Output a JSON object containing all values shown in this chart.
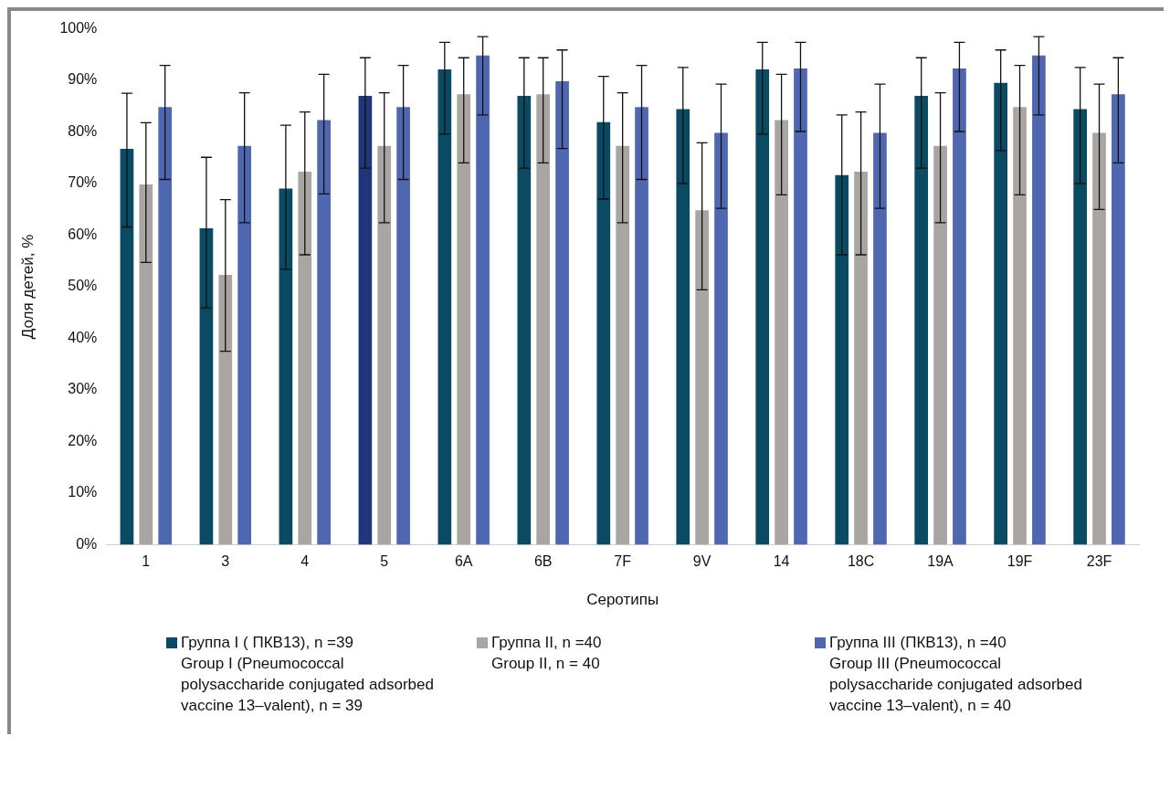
{
  "chart_data": {
    "type": "bar",
    "xlabel": "Серотипы",
    "ylabel": "Доля детей, %",
    "categories": [
      "1",
      "3",
      "4",
      "5",
      "6A",
      "6B",
      "7F",
      "9V",
      "14",
      "18C",
      "19A",
      "19F",
      "23F"
    ],
    "ylim": [
      0,
      100
    ],
    "yticks": [
      {
        "value": 0,
        "label": "0%"
      },
      {
        "value": 10,
        "label": "10%"
      },
      {
        "value": 20,
        "label": "20%"
      },
      {
        "value": 30,
        "label": "30%"
      },
      {
        "value": 40,
        "label": "40%"
      },
      {
        "value": 50,
        "label": "50%"
      },
      {
        "value": 60,
        "label": "60%"
      },
      {
        "value": 70,
        "label": "70%"
      },
      {
        "value": 80,
        "label": "80%"
      },
      {
        "value": 90,
        "label": "90%"
      },
      {
        "value": 100,
        "label": "100%"
      }
    ],
    "grid": false,
    "legend": "bottom",
    "series": [
      {
        "name": "Группа I ( ПКВ13), n =39\nGroup I (Pneumococcal polysaccharide conjugated adsorbed vaccine 13–valent), n = 39",
        "color": "#0a4a62",
        "colors": [
          "#0a4a62",
          "#0a4a62",
          "#0a4a62",
          "#20367a",
          "#0a4a62",
          "#0a4a62",
          "#0a4a62",
          "#0a4a62",
          "#0a4a62",
          "#0a4a62",
          "#0a4a62",
          "#0a4a62",
          "#0a4a62"
        ],
        "values": [
          76.9,
          61.5,
          69.2,
          87.2,
          92.3,
          87.2,
          82.1,
          84.6,
          92.3,
          71.8,
          87.2,
          89.7,
          84.6
        ],
        "errors": [
          [
            61.6,
            87.5
          ],
          [
            45.9,
            75.1
          ],
          [
            53.4,
            81.3
          ],
          [
            73,
            94.4
          ],
          [
            79.6,
            97.4
          ],
          [
            73,
            94.4
          ],
          [
            67,
            90.8
          ],
          [
            70,
            92.5
          ],
          [
            79.6,
            97.4
          ],
          [
            56.2,
            83.3
          ],
          [
            73,
            94.4
          ],
          [
            76.4,
            95.9
          ],
          [
            70,
            92.5
          ]
        ]
      },
      {
        "name": "Группа II, n =40\nGroup II, n = 40",
        "color": "#a8a5a2",
        "values": [
          70,
          52.5,
          72.5,
          77.5,
          87.5,
          87.5,
          77.5,
          65,
          82.5,
          72.5,
          77.5,
          85,
          80
        ],
        "errors": [
          [
            54.7,
            81.8
          ],
          [
            37.5,
            66.9
          ],
          [
            56.2,
            83.9
          ],
          [
            62.4,
            87.6
          ],
          [
            74,
            94.4
          ],
          [
            74,
            94.4
          ],
          [
            62.4,
            87.6
          ],
          [
            49.4,
            77.9
          ],
          [
            67.8,
            91.2
          ],
          [
            56.2,
            83.9
          ],
          [
            62.4,
            87.6
          ],
          [
            67.8,
            92.9
          ],
          [
            65,
            89.3
          ]
        ]
      },
      {
        "name": "Группа III (ПКВ13), n =40\nGroup III (Pneumococcal polysaccharide conjugated adsorbed vaccine 13–valent), n = 40",
        "color": "#4f67b0",
        "values": [
          85,
          77.5,
          82.5,
          85,
          95,
          90,
          85,
          80,
          92.5,
          80,
          92.5,
          95,
          87.5
        ],
        "errors": [
          [
            70.8,
            92.9
          ],
          [
            62.4,
            87.6
          ],
          [
            68,
            91.2
          ],
          [
            70.8,
            92.9
          ],
          [
            83.3,
            98.5
          ],
          [
            76.8,
            95.9
          ],
          [
            70.8,
            92.9
          ],
          [
            65.2,
            89.3
          ],
          [
            80.1,
            97.4
          ],
          [
            65.2,
            89.3
          ],
          [
            80.1,
            97.4
          ],
          [
            83.3,
            98.5
          ],
          [
            74,
            94.4
          ]
        ]
      }
    ]
  }
}
